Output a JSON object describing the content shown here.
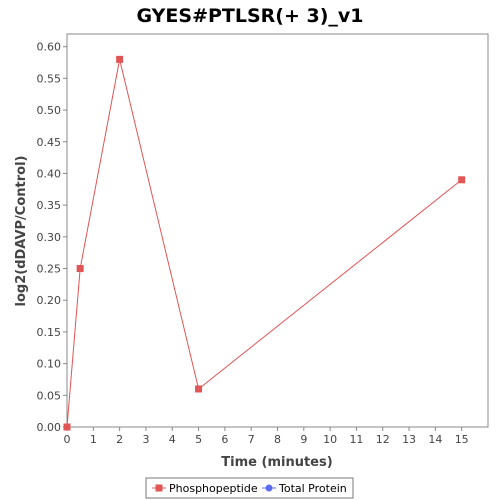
{
  "chart_data": {
    "type": "line",
    "title": "GYES#PTLSR(+ 3)_v1",
    "xlabel": "Time (minutes)",
    "ylabel": "log2(dDAVP/Control)",
    "xlim": [
      0,
      16
    ],
    "ylim": [
      0,
      0.62
    ],
    "x_ticks": [
      0,
      1,
      2,
      3,
      4,
      5,
      6,
      7,
      8,
      9,
      10,
      11,
      12,
      13,
      14,
      15
    ],
    "y_ticks": [
      0.0,
      0.05,
      0.1,
      0.15,
      0.2,
      0.25,
      0.3,
      0.35,
      0.4,
      0.45,
      0.5,
      0.55,
      0.6
    ],
    "y_tick_labels": [
      "0.00",
      "0.05",
      "0.10",
      "0.15",
      "0.20",
      "0.25",
      "0.30",
      "0.35",
      "0.40",
      "0.45",
      "0.50",
      "0.55",
      "0.60"
    ],
    "grid": false,
    "legend_position": "bottom-center",
    "series": [
      {
        "name": "Phosphopeptide",
        "color": "#e05555",
        "marker": "square",
        "x": [
          0,
          0.5,
          2,
          5,
          15
        ],
        "y": [
          0.0,
          0.25,
          0.58,
          0.06,
          0.39
        ]
      },
      {
        "name": "Total Protein",
        "color": "#5b6cf0",
        "marker": "circle",
        "x": [],
        "y": []
      }
    ]
  }
}
